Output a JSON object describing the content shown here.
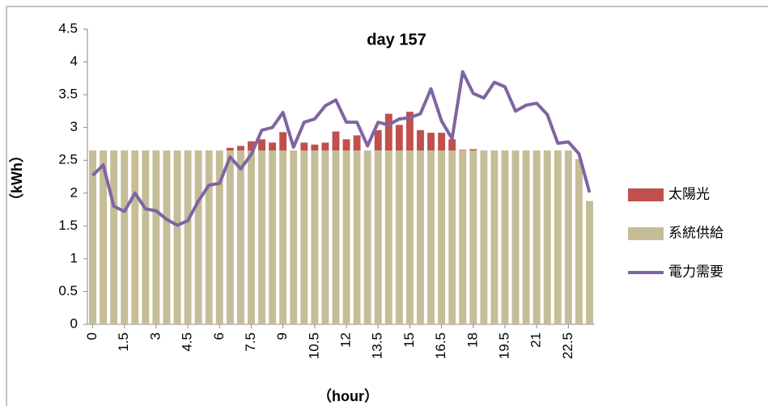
{
  "chart_data": {
    "type": "bar",
    "title": "day 157",
    "x_label": "（hour）",
    "y_label": "（kWh）",
    "categories": [
      "0",
      null,
      null,
      "1.5",
      null,
      null,
      "3",
      null,
      null,
      "4.5",
      null,
      null,
      "6",
      null,
      null,
      "7.5",
      null,
      null,
      "9",
      null,
      null,
      "10.5",
      null,
      null,
      "12",
      null,
      null,
      "13.5",
      null,
      null,
      "15",
      null,
      null,
      "16.5",
      null,
      null,
      "18",
      null,
      null,
      "19.5",
      null,
      null,
      "21",
      null,
      null,
      "22.5",
      null,
      null
    ],
    "series": [
      {
        "name": "太陽光",
        "color": "#c0504d",
        "type": "bar",
        "values": [
          0,
          0,
          0,
          0,
          0,
          0,
          0,
          0,
          0,
          0,
          0,
          0,
          0,
          0.04,
          0.07,
          0.14,
          0.17,
          0.12,
          0.28,
          0,
          0.12,
          0.09,
          0.12,
          0.29,
          0.17,
          0.23,
          0,
          0.31,
          0.56,
          0.39,
          0.59,
          0.31,
          0.27,
          0.27,
          0.17,
          0.01,
          0.02,
          0,
          0,
          0,
          0,
          0,
          0,
          0,
          0,
          0,
          0,
          0
        ]
      },
      {
        "name": "系統供給",
        "color": "#c4bd97",
        "type": "bar",
        "values": [
          2.65,
          2.65,
          2.65,
          2.65,
          2.65,
          2.65,
          2.65,
          2.65,
          2.65,
          2.65,
          2.65,
          2.65,
          2.65,
          2.65,
          2.65,
          2.65,
          2.65,
          2.65,
          2.65,
          2.65,
          2.65,
          2.65,
          2.65,
          2.65,
          2.65,
          2.65,
          2.65,
          2.65,
          2.65,
          2.65,
          2.65,
          2.65,
          2.65,
          2.65,
          2.65,
          2.65,
          2.65,
          2.65,
          2.65,
          2.65,
          2.65,
          2.65,
          2.65,
          2.65,
          2.65,
          2.65,
          2.52,
          1.88
        ]
      },
      {
        "name": "電力需要",
        "color": "#8064a2",
        "type": "line",
        "values": [
          2.27,
          2.43,
          1.8,
          1.72,
          2.0,
          1.76,
          1.73,
          1.6,
          1.51,
          1.58,
          1.88,
          2.12,
          2.15,
          2.55,
          2.37,
          2.59,
          2.96,
          3.0,
          3.23,
          2.7,
          3.08,
          3.13,
          3.33,
          3.42,
          3.08,
          3.08,
          2.72,
          3.08,
          3.04,
          3.13,
          3.15,
          3.21,
          3.59,
          3.1,
          2.83,
          3.85,
          3.52,
          3.45,
          3.69,
          3.62,
          3.25,
          3.34,
          3.37,
          3.2,
          2.76,
          2.78,
          2.6,
          2.01
        ]
      }
    ],
    "ylim": [
      0,
      4.5
    ],
    "yticks": [
      0,
      0.5,
      1,
      1.5,
      2,
      2.5,
      3,
      3.5,
      4,
      4.5
    ],
    "grid": false,
    "legend": "right"
  }
}
